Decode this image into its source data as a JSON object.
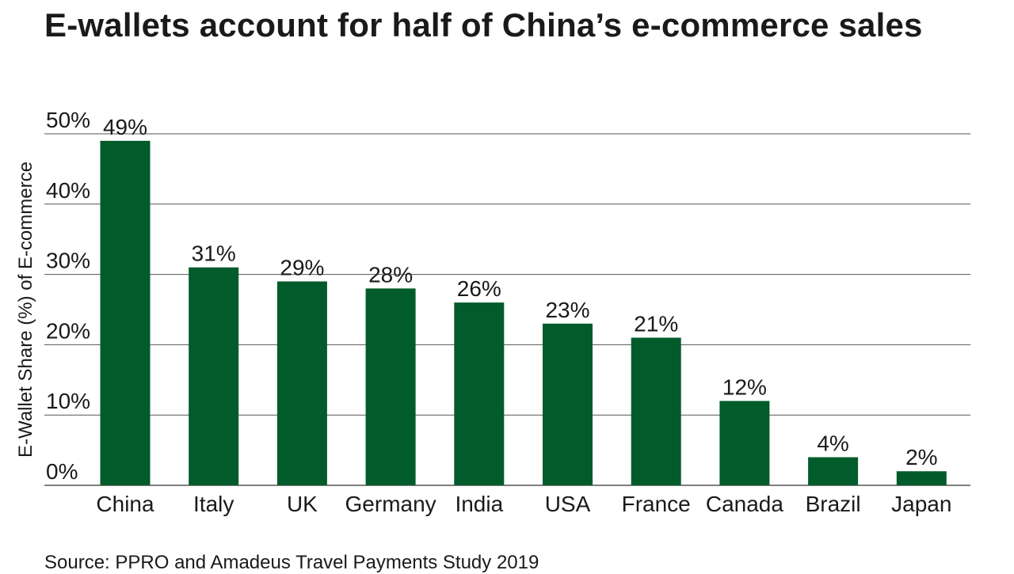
{
  "title": "E-wallets account for half of China’s e-commerce sales",
  "source": "Source: PPRO and Amadeus Travel Payments Study 2019",
  "colors": {
    "bar": "#025b2a",
    "grid": "#555555",
    "text": "#1a1a1a"
  },
  "chart_data": {
    "type": "bar",
    "title": "E-wallets account for half of China’s e-commerce sales",
    "xlabel": "",
    "ylabel": "E-Wallet Share (%) of E-commerce",
    "ylim": [
      0,
      50
    ],
    "yticks": [
      0,
      10,
      20,
      30,
      40,
      50
    ],
    "ytick_labels": [
      "0%",
      "10%",
      "20%",
      "30%",
      "40%",
      "50%"
    ],
    "grid": true,
    "categories": [
      "China",
      "Italy",
      "UK",
      "Germany",
      "India",
      "USA",
      "France",
      "Canada",
      "Brazil",
      "Japan"
    ],
    "values": [
      49,
      31,
      29,
      28,
      26,
      23,
      21,
      12,
      4,
      2
    ],
    "value_labels": [
      "49%",
      "31%",
      "29%",
      "28%",
      "26%",
      "23%",
      "21%",
      "12%",
      "4%",
      "2%"
    ]
  }
}
